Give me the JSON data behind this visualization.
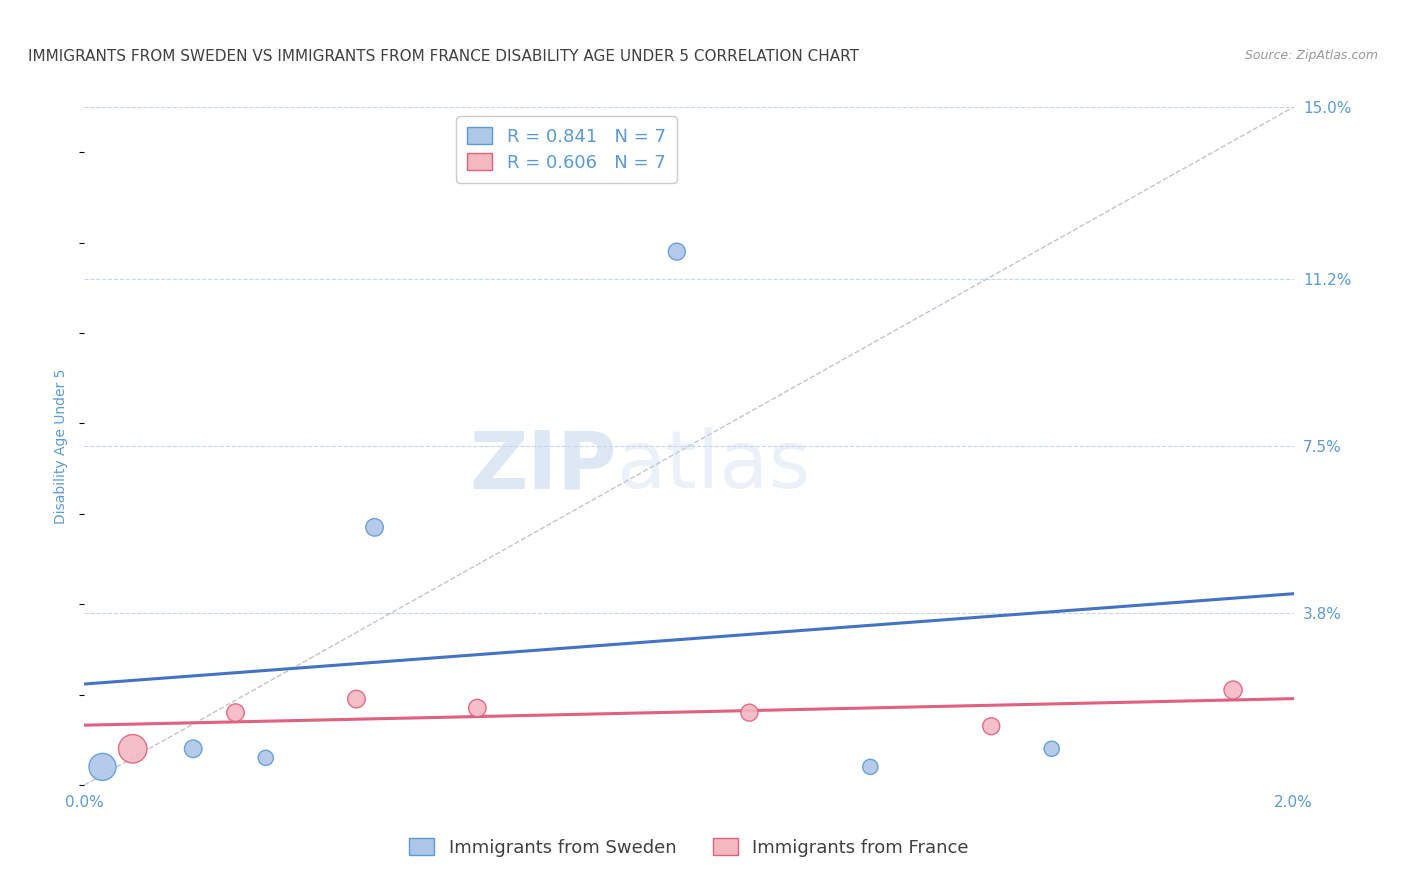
{
  "title": "IMMIGRANTS FROM SWEDEN VS IMMIGRANTS FROM FRANCE DISABILITY AGE UNDER 5 CORRELATION CHART",
  "source": "Source: ZipAtlas.com",
  "ylabel": "Disability Age Under 5",
  "x_min": 0.0,
  "x_max": 0.02,
  "y_min": 0.0,
  "y_max": 0.15,
  "x_ticks": [
    0.0,
    0.004,
    0.008,
    0.012,
    0.016,
    0.02
  ],
  "x_tick_labels": [
    "0.0%",
    "",
    "",
    "",
    "",
    "2.0%"
  ],
  "y_tick_right": [
    0.0,
    0.038,
    0.075,
    0.112,
    0.15
  ],
  "y_tick_right_labels": [
    "",
    "3.8%",
    "7.5%",
    "11.2%",
    "15.0%"
  ],
  "sweden_x": [
    0.0003,
    0.0018,
    0.003,
    0.0048,
    0.0098,
    0.013,
    0.016
  ],
  "sweden_y": [
    0.004,
    0.008,
    0.006,
    0.057,
    0.118,
    0.004,
    0.008
  ],
  "sweden_sizes": [
    380,
    160,
    120,
    160,
    150,
    120,
    120
  ],
  "france_x": [
    0.0008,
    0.0025,
    0.0045,
    0.0065,
    0.011,
    0.015,
    0.019
  ],
  "france_y": [
    0.008,
    0.016,
    0.019,
    0.017,
    0.016,
    0.013,
    0.021
  ],
  "france_sizes": [
    420,
    160,
    160,
    160,
    150,
    150,
    170
  ],
  "sweden_color": "#aec6e8",
  "sweden_edge_color": "#5b9bd5",
  "france_color": "#f4b8c1",
  "france_edge_color": "#e06080",
  "sweden_line_color": "#4472c4",
  "france_line_color": "#e06080",
  "ref_line_color": "#b8bfc8",
  "R_sweden": 0.841,
  "N_sweden": 7,
  "R_france": 0.606,
  "N_france": 7,
  "legend_label_sweden": "Immigrants from Sweden",
  "legend_label_france": "Immigrants from France",
  "watermark_zip": "ZIP",
  "watermark_atlas": "atlas",
  "title_color": "#404040",
  "axis_label_color": "#5b9bd5",
  "tick_color": "#5b9bd5",
  "background_color": "#ffffff",
  "grid_color": "#c8d4e8",
  "title_fontsize": 11,
  "axis_label_fontsize": 10,
  "tick_fontsize": 11,
  "legend_fontsize": 13,
  "source_fontsize": 9
}
